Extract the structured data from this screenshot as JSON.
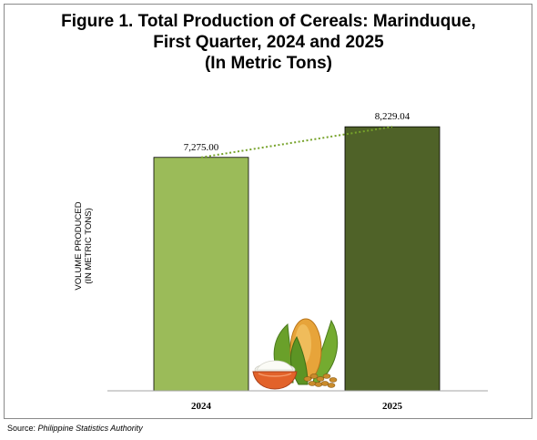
{
  "chart_data": {
    "type": "bar",
    "title_lines": [
      "Figure 1. Total Production of Cereals: Marinduque,",
      "First Quarter, 2024 and 2025",
      "(In Metric Tons)"
    ],
    "ylabel_lines": [
      "VOLUME PRODUCED",
      "(IN METRIC TONS)"
    ],
    "xlabel": "",
    "categories": [
      "2024",
      "2025"
    ],
    "values": [
      7275.0,
      8229.04
    ],
    "value_labels": [
      "7,275.00",
      "8,229.04"
    ],
    "ylim": [
      0,
      9000
    ],
    "grid": false,
    "legend": "none",
    "trendline": true
  },
  "colors": {
    "bar_2024": "#9bbb59",
    "bar_2025": "#4f6228",
    "trendline": "#77a32b",
    "axis": "#a6a6a6"
  },
  "decoration_icon": "cereal-grains-icon",
  "source": {
    "label": "Source:",
    "name": "Philippine Statistics Authority"
  }
}
